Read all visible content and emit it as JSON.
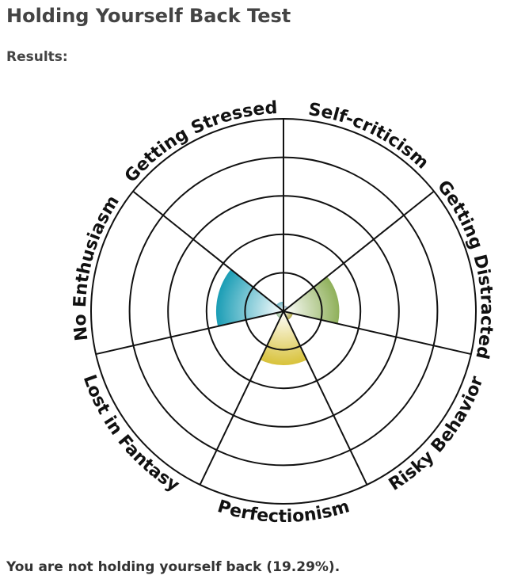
{
  "header": {
    "title": "Holding Yourself Back Test",
    "subtitle": "Results:"
  },
  "chart_data": {
    "type": "polar-area",
    "categories": [
      "Self-criticism",
      "Getting Distracted",
      "Risky Behavior",
      "Perfectionism",
      "Lost in Fantasy",
      "No Enthusiasm",
      "Getting Stressed"
    ],
    "values": [
      3,
      29,
      5,
      28,
      4,
      35,
      5
    ],
    "colors": [
      "#9fb9c9",
      "#8fb05a",
      "#b0a848",
      "#d8c23a",
      "#9bbf9a",
      "#1a9db5",
      "#6fb5c4"
    ],
    "rlim": [
      0,
      100
    ],
    "rticks": [
      20,
      40,
      60,
      80,
      100
    ]
  },
  "footer": {
    "text": "You are not holding yourself back (19.29%)."
  }
}
